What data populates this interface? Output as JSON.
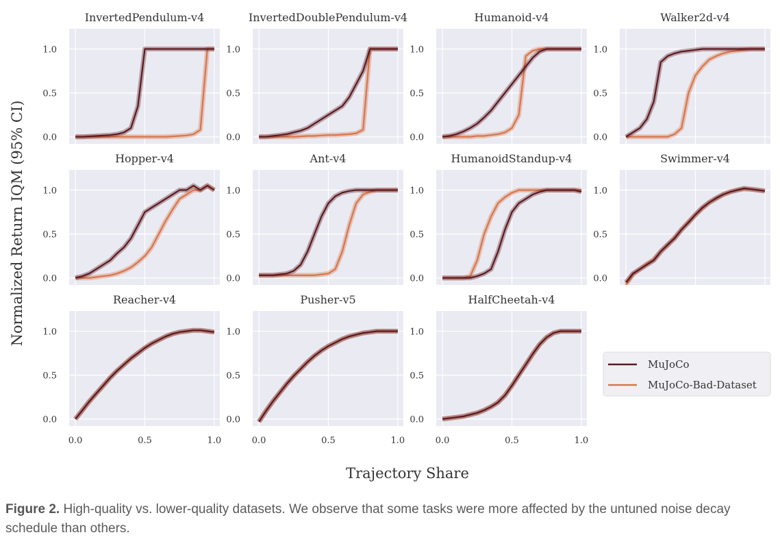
{
  "chart_data": [
    {
      "type": "line",
      "title": "InvertedPendulum-v4",
      "series": [
        {
          "name": "MuJoCo",
          "values": [
            0,
            0,
            0.005,
            0.01,
            0.015,
            0.02,
            0.03,
            0.05,
            0.1,
            0.35,
            1,
            1,
            1,
            1,
            1,
            1,
            1,
            1,
            1,
            1,
            1
          ]
        },
        {
          "name": "MuJoCo-Bad-Dataset",
          "values": [
            0,
            0,
            0,
            0,
            0,
            0,
            0,
            0,
            0,
            0,
            0,
            0,
            0,
            0,
            0.005,
            0.01,
            0.015,
            0.03,
            0.08,
            1,
            1
          ]
        }
      ]
    },
    {
      "type": "line",
      "title": "InvertedDoublePendulum-v4",
      "series": [
        {
          "name": "MuJoCo",
          "values": [
            0,
            0,
            0.01,
            0.02,
            0.03,
            0.05,
            0.07,
            0.1,
            0.15,
            0.2,
            0.25,
            0.3,
            0.35,
            0.45,
            0.6,
            0.75,
            1,
            1,
            1,
            1,
            1
          ]
        },
        {
          "name": "MuJoCo-Bad-Dataset",
          "values": [
            0,
            0,
            0,
            0,
            0,
            0,
            0.005,
            0.01,
            0.01,
            0.015,
            0.02,
            0.02,
            0.025,
            0.03,
            0.04,
            0.08,
            1,
            1,
            1,
            1,
            1
          ]
        }
      ]
    },
    {
      "type": "line",
      "title": "Humanoid-v4",
      "series": [
        {
          "name": "MuJoCo",
          "values": [
            0,
            0.01,
            0.03,
            0.06,
            0.1,
            0.15,
            0.22,
            0.3,
            0.4,
            0.5,
            0.6,
            0.7,
            0.8,
            0.9,
            0.97,
            1,
            1,
            1,
            1,
            1,
            1
          ]
        },
        {
          "name": "MuJoCo-Bad-Dataset",
          "values": [
            0,
            0,
            0,
            0,
            0,
            0.01,
            0.01,
            0.02,
            0.03,
            0.05,
            0.1,
            0.25,
            0.92,
            0.98,
            1,
            1,
            1,
            1,
            1,
            1,
            1
          ]
        }
      ]
    },
    {
      "type": "line",
      "title": "Walker2d-v4",
      "series": [
        {
          "name": "MuJoCo",
          "values": [
            0,
            0.05,
            0.1,
            0.2,
            0.4,
            0.85,
            0.92,
            0.95,
            0.97,
            0.98,
            0.99,
            1,
            1,
            1,
            1,
            1,
            1,
            1,
            1,
            1,
            1
          ]
        },
        {
          "name": "MuJoCo-Bad-Dataset",
          "values": [
            0,
            0,
            0,
            0,
            0,
            0,
            0,
            0.03,
            0.1,
            0.5,
            0.7,
            0.8,
            0.88,
            0.92,
            0.95,
            0.97,
            0.98,
            0.99,
            1,
            1,
            1
          ]
        }
      ]
    },
    {
      "type": "line",
      "title": "Hopper-v4",
      "series": [
        {
          "name": "MuJoCo",
          "values": [
            0,
            0.02,
            0.05,
            0.1,
            0.15,
            0.2,
            0.28,
            0.35,
            0.45,
            0.6,
            0.75,
            0.8,
            0.85,
            0.9,
            0.95,
            1,
            1,
            1.05,
            1,
            1.05,
            1
          ]
        },
        {
          "name": "MuJoCo-Bad-Dataset",
          "values": [
            0,
            0,
            0,
            0.01,
            0.02,
            0.03,
            0.05,
            0.08,
            0.12,
            0.18,
            0.25,
            0.35,
            0.5,
            0.65,
            0.78,
            0.9,
            0.95,
            1,
            1,
            1.05,
            1
          ]
        }
      ]
    },
    {
      "type": "line",
      "title": "Ant-v4",
      "series": [
        {
          "name": "MuJoCo",
          "values": [
            0.03,
            0.03,
            0.03,
            0.04,
            0.05,
            0.08,
            0.15,
            0.3,
            0.5,
            0.7,
            0.85,
            0.93,
            0.97,
            0.99,
            1,
            1,
            1,
            1,
            1,
            1,
            1
          ]
        },
        {
          "name": "MuJoCo-Bad-Dataset",
          "values": [
            0.03,
            0.03,
            0.03,
            0.03,
            0.03,
            0.03,
            0.03,
            0.03,
            0.03,
            0.04,
            0.05,
            0.1,
            0.3,
            0.6,
            0.85,
            0.95,
            0.98,
            1,
            1,
            1,
            1
          ]
        }
      ]
    },
    {
      "type": "line",
      "title": "HumanoidStandup-v4",
      "series": [
        {
          "name": "MuJoCo",
          "values": [
            0,
            0,
            0,
            0,
            0,
            0.02,
            0.05,
            0.1,
            0.3,
            0.55,
            0.75,
            0.85,
            0.9,
            0.95,
            0.98,
            1,
            1,
            1,
            1,
            1,
            0.98
          ]
        },
        {
          "name": "MuJoCo-Bad-Dataset",
          "values": [
            0,
            0,
            0,
            0,
            0.02,
            0.2,
            0.5,
            0.7,
            0.85,
            0.92,
            0.97,
            1,
            1,
            1,
            1,
            1,
            1,
            1,
            1,
            1,
            1
          ]
        }
      ]
    },
    {
      "type": "line",
      "title": "Swimmer-v4",
      "series": [
        {
          "name": "MuJoCo",
          "values": [
            -0.05,
            0.05,
            0.1,
            0.15,
            0.2,
            0.3,
            0.38,
            0.45,
            0.55,
            0.63,
            0.72,
            0.8,
            0.86,
            0.91,
            0.95,
            0.98,
            1,
            1.02,
            1.01,
            1,
            0.99
          ]
        },
        {
          "name": "MuJoCo-Bad-Dataset",
          "values": [
            -0.08,
            0.04,
            0.1,
            0.16,
            0.21,
            0.3,
            0.37,
            0.46,
            0.55,
            0.64,
            0.72,
            0.79,
            0.86,
            0.9,
            0.95,
            0.98,
            1,
            1.01,
            1.01,
            1,
            0.99
          ]
        }
      ]
    },
    {
      "type": "line",
      "title": "Reacher-v4",
      "series": [
        {
          "name": "MuJoCo",
          "values": [
            0,
            0.1,
            0.2,
            0.29,
            0.38,
            0.47,
            0.55,
            0.62,
            0.69,
            0.75,
            0.81,
            0.86,
            0.9,
            0.94,
            0.97,
            0.99,
            1,
            1.01,
            1.01,
            1,
            0.99
          ]
        },
        {
          "name": "MuJoCo-Bad-Dataset",
          "values": [
            0,
            0.1,
            0.2,
            0.29,
            0.38,
            0.47,
            0.55,
            0.62,
            0.69,
            0.75,
            0.81,
            0.86,
            0.9,
            0.94,
            0.97,
            0.99,
            1,
            1.01,
            1.01,
            1,
            0.99
          ]
        }
      ]
    },
    {
      "type": "line",
      "title": "Pusher-v5",
      "series": [
        {
          "name": "MuJoCo",
          "values": [
            -0.03,
            0.09,
            0.2,
            0.3,
            0.4,
            0.49,
            0.57,
            0.65,
            0.72,
            0.78,
            0.83,
            0.87,
            0.91,
            0.94,
            0.96,
            0.98,
            0.99,
            1,
            1,
            1,
            1
          ]
        },
        {
          "name": "MuJoCo-Bad-Dataset",
          "values": [
            -0.03,
            0.09,
            0.2,
            0.3,
            0.4,
            0.49,
            0.57,
            0.65,
            0.72,
            0.78,
            0.83,
            0.87,
            0.91,
            0.94,
            0.96,
            0.98,
            0.99,
            1,
            1,
            1,
            1
          ]
        }
      ]
    },
    {
      "type": "line",
      "title": "HalfCheetah-v4",
      "series": [
        {
          "name": "MuJoCo",
          "values": [
            0,
            0.01,
            0.02,
            0.03,
            0.05,
            0.07,
            0.1,
            0.14,
            0.19,
            0.27,
            0.38,
            0.5,
            0.62,
            0.74,
            0.85,
            0.93,
            0.98,
            1,
            1,
            1,
            1
          ]
        },
        {
          "name": "MuJoCo-Bad-Dataset",
          "values": [
            0,
            0.01,
            0.02,
            0.03,
            0.05,
            0.07,
            0.1,
            0.14,
            0.19,
            0.27,
            0.38,
            0.5,
            0.62,
            0.74,
            0.85,
            0.93,
            0.98,
            1,
            1,
            1,
            1
          ]
        }
      ]
    }
  ],
  "shared": {
    "x": [
      0,
      0.05,
      0.1,
      0.15,
      0.2,
      0.25,
      0.3,
      0.35,
      0.4,
      0.45,
      0.5,
      0.55,
      0.6,
      0.65,
      0.7,
      0.75,
      0.8,
      0.85,
      0.9,
      0.95,
      1
    ],
    "xlim": [
      -0.045,
      1.04
    ],
    "ylim": [
      -0.08,
      1.23
    ],
    "xticks": [
      "0.0",
      "0.5",
      "1.0"
    ],
    "yticks": [
      "0.0",
      "0.5",
      "1.0"
    ],
    "xlabel": "Trajectory Share",
    "ylabel": "Normalized Return IQM (95% CI)",
    "grid": true,
    "legend_placement": "lower-right (empty 4th slot)",
    "colors": {
      "MuJoCo": "#5b1a20",
      "MuJoCo-Bad-Dataset": "#d8764a",
      "background": "#eaeaf2"
    }
  },
  "legend": [
    "MuJoCo",
    "MuJoCo-Bad-Dataset"
  ],
  "caption": {
    "label": "Figure 2.",
    "text": " High-quality vs. lower-quality datasets. We observe that some tasks were more affected by the untuned noise decay schedule than others."
  }
}
